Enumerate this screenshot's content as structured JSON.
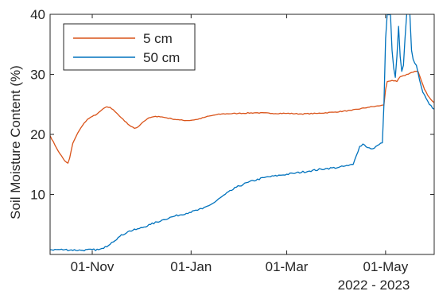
{
  "chart_data": {
    "type": "line",
    "title": "",
    "xlabel": "2022 - 2023",
    "ylabel": "Soil Moisture Content (%)",
    "xlim": [
      "2022-10-06",
      "2023-05-31"
    ],
    "ylim": [
      0,
      40
    ],
    "x_ticks": [
      {
        "date": "2022-11-01",
        "label": "01-Nov"
      },
      {
        "date": "2023-01-01",
        "label": "01-Jan"
      },
      {
        "date": "2023-03-01",
        "label": "01-Mar"
      },
      {
        "date": "2023-05-01",
        "label": "01-May"
      }
    ],
    "y_ticks": [
      10,
      20,
      30,
      40
    ],
    "grid": false,
    "legend": {
      "position": "top-left",
      "boxed": true
    },
    "series": [
      {
        "name": "5 cm",
        "color": "#D95319",
        "points": [
          [
            "2022-10-06",
            19.8
          ],
          [
            "2022-10-09",
            18.2
          ],
          [
            "2022-10-12",
            16.8
          ],
          [
            "2022-10-15",
            15.6
          ],
          [
            "2022-10-17",
            15.2
          ],
          [
            "2022-10-18",
            16.0
          ],
          [
            "2022-10-20",
            18.5
          ],
          [
            "2022-10-23",
            20.2
          ],
          [
            "2022-10-26",
            21.5
          ],
          [
            "2022-10-29",
            22.5
          ],
          [
            "2022-11-01",
            23.0
          ],
          [
            "2022-11-04",
            23.4
          ],
          [
            "2022-11-07",
            24.1
          ],
          [
            "2022-11-10",
            24.6
          ],
          [
            "2022-11-12",
            24.5
          ],
          [
            "2022-11-15",
            23.8
          ],
          [
            "2022-11-18",
            23.0
          ],
          [
            "2022-11-21",
            22.2
          ],
          [
            "2022-11-24",
            21.5
          ],
          [
            "2022-11-27",
            21.0
          ],
          [
            "2022-11-29",
            21.2
          ],
          [
            "2022-12-02",
            22.0
          ],
          [
            "2022-12-05",
            22.6
          ],
          [
            "2022-12-08",
            22.9
          ],
          [
            "2022-12-12",
            23.0
          ],
          [
            "2022-12-16",
            22.8
          ],
          [
            "2022-12-20",
            22.6
          ],
          [
            "2022-12-25",
            22.4
          ],
          [
            "2022-12-30",
            22.3
          ],
          [
            "2023-01-05",
            22.5
          ],
          [
            "2023-01-10",
            22.9
          ],
          [
            "2023-01-15",
            23.2
          ],
          [
            "2023-01-20",
            23.4
          ],
          [
            "2023-01-30",
            23.5
          ],
          [
            "2023-02-10",
            23.6
          ],
          [
            "2023-02-20",
            23.5
          ],
          [
            "2023-03-01",
            23.5
          ],
          [
            "2023-03-10",
            23.4
          ],
          [
            "2023-03-20",
            23.5
          ],
          [
            "2023-03-30",
            23.7
          ],
          [
            "2023-04-10",
            24.0
          ],
          [
            "2023-04-20",
            24.5
          ],
          [
            "2023-04-28",
            24.8
          ],
          [
            "2023-04-30",
            24.9
          ],
          [
            "2023-05-01",
            27.5
          ],
          [
            "2023-05-02",
            28.8
          ],
          [
            "2023-05-05",
            29.0
          ],
          [
            "2023-05-08",
            28.8
          ],
          [
            "2023-05-10",
            29.6
          ],
          [
            "2023-05-13",
            29.8
          ],
          [
            "2023-05-16",
            30.2
          ],
          [
            "2023-05-19",
            30.5
          ],
          [
            "2023-05-21",
            30.5
          ],
          [
            "2023-05-23",
            29.0
          ],
          [
            "2023-05-25",
            27.5
          ],
          [
            "2023-05-27",
            26.5
          ],
          [
            "2023-05-29",
            25.8
          ],
          [
            "2023-05-31",
            25.3
          ]
        ]
      },
      {
        "name": "50 cm",
        "color": "#0072BD",
        "points": [
          [
            "2022-10-06",
            0.8
          ],
          [
            "2022-10-15",
            0.8
          ],
          [
            "2022-10-25",
            0.7
          ],
          [
            "2022-11-05",
            0.8
          ],
          [
            "2022-11-08",
            1.0
          ],
          [
            "2022-11-13",
            2.0
          ],
          [
            "2022-11-18",
            3.0
          ],
          [
            "2022-11-23",
            3.8
          ],
          [
            "2022-11-30",
            4.3
          ],
          [
            "2022-12-07",
            5.0
          ],
          [
            "2022-12-15",
            5.8
          ],
          [
            "2022-12-22",
            6.4
          ],
          [
            "2022-12-31",
            7.0
          ],
          [
            "2023-01-08",
            7.6
          ],
          [
            "2023-01-15",
            8.6
          ],
          [
            "2023-01-22",
            10.0
          ],
          [
            "2023-01-29",
            11.2
          ],
          [
            "2023-02-05",
            12.0
          ],
          [
            "2023-02-15",
            12.8
          ],
          [
            "2023-02-25",
            13.2
          ],
          [
            "2023-03-05",
            13.5
          ],
          [
            "2023-03-15",
            13.9
          ],
          [
            "2023-03-25",
            14.3
          ],
          [
            "2023-04-02",
            14.5
          ],
          [
            "2023-04-08",
            14.8
          ],
          [
            "2023-04-11",
            15.0
          ],
          [
            "2023-04-13",
            16.5
          ],
          [
            "2023-04-15",
            18.0
          ],
          [
            "2023-04-17",
            18.4
          ],
          [
            "2023-04-20",
            17.8
          ],
          [
            "2023-04-23",
            17.6
          ],
          [
            "2023-04-27",
            18.3
          ],
          [
            "2023-04-29",
            18.6
          ],
          [
            "2023-04-30",
            25.0
          ],
          [
            "2023-05-01",
            36.0
          ],
          [
            "2023-05-02",
            40.0
          ],
          [
            "2023-05-04",
            40.0
          ],
          [
            "2023-05-05",
            34.0
          ],
          [
            "2023-05-06",
            31.0
          ],
          [
            "2023-05-07",
            29.5
          ],
          [
            "2023-05-08",
            33.0
          ],
          [
            "2023-05-09",
            38.0
          ],
          [
            "2023-05-10",
            33.0
          ],
          [
            "2023-05-11",
            30.5
          ],
          [
            "2023-05-12",
            31.5
          ],
          [
            "2023-05-13",
            36.0
          ],
          [
            "2023-05-14",
            40.0
          ],
          [
            "2023-05-16",
            40.0
          ],
          [
            "2023-05-17",
            34.0
          ],
          [
            "2023-05-18",
            32.5
          ],
          [
            "2023-05-20",
            31.5
          ],
          [
            "2023-05-22",
            29.0
          ],
          [
            "2023-05-24",
            27.0
          ],
          [
            "2023-05-26",
            26.0
          ],
          [
            "2023-05-28",
            25.0
          ],
          [
            "2023-05-31",
            24.2
          ]
        ]
      }
    ]
  }
}
